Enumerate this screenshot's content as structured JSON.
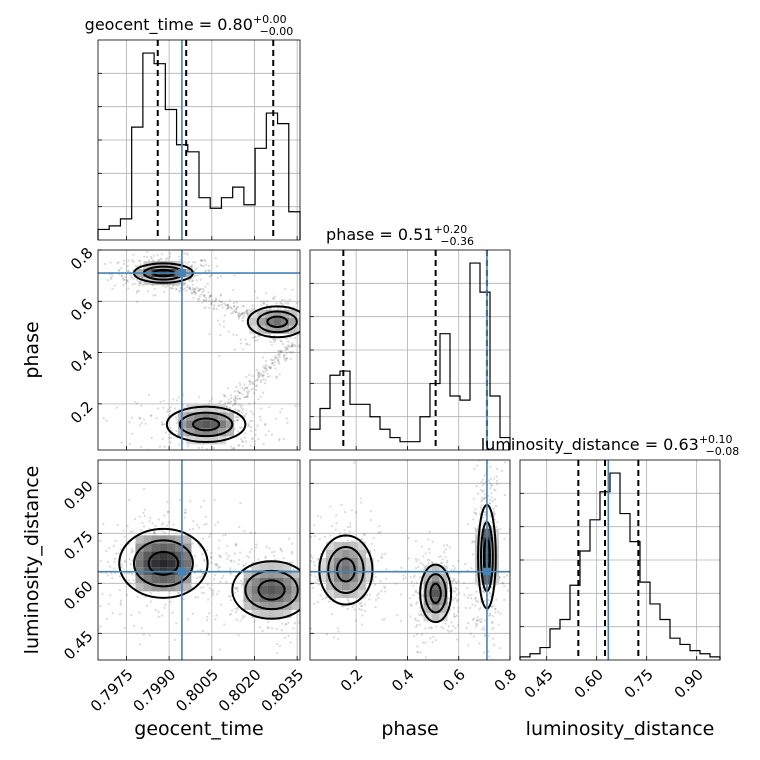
{
  "chart_data": {
    "type": "corner",
    "truth_color": "#4682b4",
    "parameters": [
      {
        "name": "geocent_time",
        "label": "geocent_time",
        "range": [
          0.7965,
          0.8036
        ],
        "ticks": [
          "0.7975",
          "0.7990",
          "0.8005",
          "0.8020",
          "0.8035"
        ],
        "tick_values": [
          0.7975,
          0.799,
          0.8005,
          0.802,
          0.8035
        ],
        "truth": 0.79945,
        "quantiles": [
          0.7986,
          0.7996,
          0.80266
        ],
        "title": {
          "text": "geocent_time = 0.80",
          "plus": "+0.00",
          "minus": "−0.00"
        },
        "hist": [
          0.03,
          0.04,
          0.06,
          0.32,
          0.53,
          0.5,
          0.37,
          0.27,
          0.25,
          0.12,
          0.09,
          0.12,
          0.15,
          0.1,
          0.26,
          0.36,
          0.33,
          0.08
        ]
      },
      {
        "name": "phase",
        "label": "phase",
        "range": [
          0.02,
          0.8
        ],
        "ticks": [
          "0.2",
          "0.4",
          "0.6",
          "0.8"
        ],
        "tick_values": [
          0.2,
          0.4,
          0.6,
          0.8
        ],
        "truth": 0.71,
        "quantiles": [
          0.15,
          0.51,
          0.71
        ],
        "title": {
          "text": "phase = 0.51",
          "plus": "+0.20",
          "minus": "−0.36"
        },
        "hist": [
          0.05,
          0.1,
          0.18,
          0.19,
          0.11,
          0.11,
          0.08,
          0.05,
          0.03,
          0.02,
          0.02,
          0.08,
          0.16,
          0.28,
          0.13,
          0.12,
          0.45,
          0.38,
          0.13,
          0.03
        ]
      },
      {
        "name": "luminosity_distance",
        "label": "luminosity_distance",
        "range": [
          0.37,
          0.97
        ],
        "ticks": [
          "0.45",
          "0.60",
          "0.75",
          "0.90"
        ],
        "tick_values": [
          0.45,
          0.6,
          0.75,
          0.9
        ],
        "truth": 0.635,
        "quantiles": [
          0.545,
          0.625,
          0.725
        ],
        "title": {
          "text": "luminosity_distance = 0.63",
          "plus": "+0.10",
          "minus": "−0.08"
        },
        "hist": [
          0.01,
          0.02,
          0.04,
          0.1,
          0.13,
          0.24,
          0.35,
          0.45,
          0.54,
          0.6,
          0.47,
          0.38,
          0.25,
          0.18,
          0.13,
          0.07,
          0.05,
          0.03,
          0.02,
          0.01
        ]
      }
    ],
    "pairs": [
      {
        "x": "geocent_time",
        "y": "phase",
        "modes": [
          {
            "cx": 0.7988,
            "cy": 0.71,
            "sx": 0.0006,
            "sy": 0.022,
            "peak": 0.9
          },
          {
            "cx": 0.8028,
            "cy": 0.52,
            "sx": 0.0006,
            "sy": 0.035,
            "peak": 0.6
          },
          {
            "cx": 0.8003,
            "cy": 0.12,
            "sx": 0.0008,
            "sy": 0.04,
            "peak": 0.7
          }
        ]
      },
      {
        "x": "geocent_time",
        "y": "luminosity_distance",
        "modes": [
          {
            "cx": 0.7988,
            "cy": 0.66,
            "sx": 0.0009,
            "sy": 0.06,
            "peak": 0.9
          },
          {
            "cx": 0.8026,
            "cy": 0.58,
            "sx": 0.0008,
            "sy": 0.05,
            "peak": 0.7
          }
        ]
      },
      {
        "x": "phase",
        "y": "luminosity_distance",
        "modes": [
          {
            "cx": 0.16,
            "cy": 0.64,
            "sx": 0.06,
            "sy": 0.06,
            "peak": 0.6
          },
          {
            "cx": 0.51,
            "cy": 0.57,
            "sx": 0.035,
            "sy": 0.05,
            "peak": 0.7
          },
          {
            "cx": 0.71,
            "cy": 0.68,
            "sx": 0.02,
            "sy": 0.09,
            "peak": 0.9
          }
        ]
      }
    ]
  }
}
